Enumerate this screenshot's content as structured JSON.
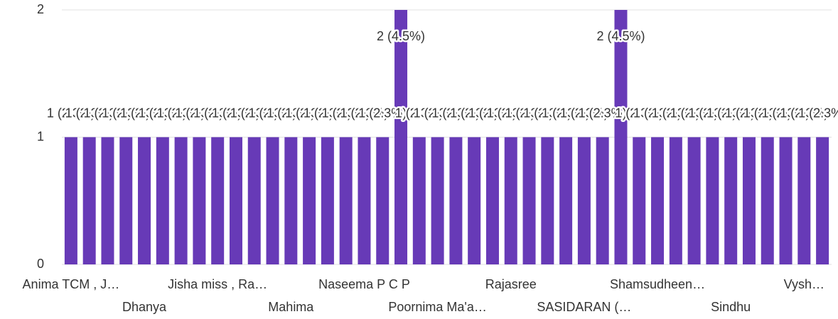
{
  "chart_data": {
    "type": "bar",
    "categories": [
      "Anima TCM , J…",
      null,
      null,
      null,
      "Dhanya",
      null,
      null,
      null,
      "Jisha miss , Ra…",
      null,
      null,
      null,
      "Mahima",
      null,
      null,
      null,
      "Naseema P C P",
      null,
      null,
      null,
      "Poornima Ma'a…",
      null,
      null,
      null,
      "Rajasree",
      null,
      null,
      null,
      "SASIDARAN (…",
      null,
      null,
      null,
      "Shamsudheen…",
      null,
      null,
      null,
      "Sindhu",
      null,
      null,
      null,
      "Vysh…",
      null
    ],
    "values": [
      1,
      1,
      1,
      1,
      1,
      1,
      1,
      1,
      1,
      1,
      1,
      1,
      1,
      1,
      1,
      1,
      1,
      1,
      2,
      1,
      1,
      1,
      1,
      1,
      1,
      1,
      1,
      1,
      1,
      1,
      2,
      1,
      1,
      1,
      1,
      1,
      1,
      1,
      1,
      1,
      1,
      1
    ],
    "value_labels": [
      "1 (2.3%)",
      "1 (2.3%)",
      "1 (2.3%)",
      "1 (2.3%)",
      "1 (2.3%)",
      "1 (2.3%)",
      "1 (2.3%)",
      "1 (2.3%)",
      "1 (2.3%)",
      "1 (2.3%)",
      "1 (2.3%)",
      "1 (2.3%)",
      "1 (2.3%)",
      "1 (2.3%)",
      "1 (2.3%)",
      "1 (2.3%)",
      "1 (2.3%)",
      "1 (2.3%)",
      "2 (4.5%)",
      "1 (2.3%)",
      "1 (2.3%)",
      "1 (2.3%)",
      "1 (2.3%)",
      "1 (2.3%)",
      "1 (2.3%)",
      "1 (2.3%)",
      "1 (2.3%)",
      "1 (2.3%)",
      "1 (2.3%)",
      "1 (2.3%)",
      "2 (4.5%)",
      "1 (2.3%)",
      "1 (2.3%)",
      "1 (2.3%)",
      "1 (2.3%)",
      "1 (2.3%)",
      "1 (2.3%)",
      "1 (2.3%)",
      "1 (2.3%)",
      "1 (2.3%)",
      "1 (2.3%)",
      "1 (2.3%)"
    ],
    "color": "#673ab7",
    "ylim": [
      0,
      2
    ],
    "yticks": [
      0,
      1,
      2
    ],
    "grid": true
  }
}
